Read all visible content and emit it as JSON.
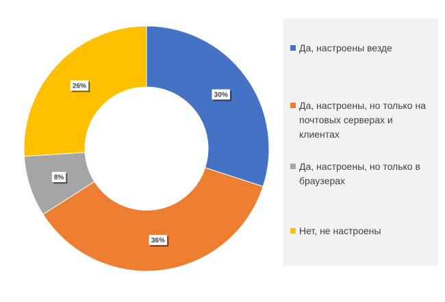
{
  "chart_data": {
    "type": "pie",
    "title": "",
    "donut": true,
    "start_angle_deg": 0,
    "categories": [
      "Да, настроены везде",
      "Да, настроены, но только на почтовых серверах и клиентах",
      "Да, настроены, но только в браузерах",
      "Нет, не настроены"
    ],
    "values": [
      30,
      36,
      8,
      26
    ],
    "data_labels": [
      "30%",
      "36%",
      "8%",
      "26%"
    ],
    "colors": [
      "#4472C4",
      "#ED7D31",
      "#A5A5A5",
      "#FFC000"
    ],
    "legend_position": "right"
  }
}
